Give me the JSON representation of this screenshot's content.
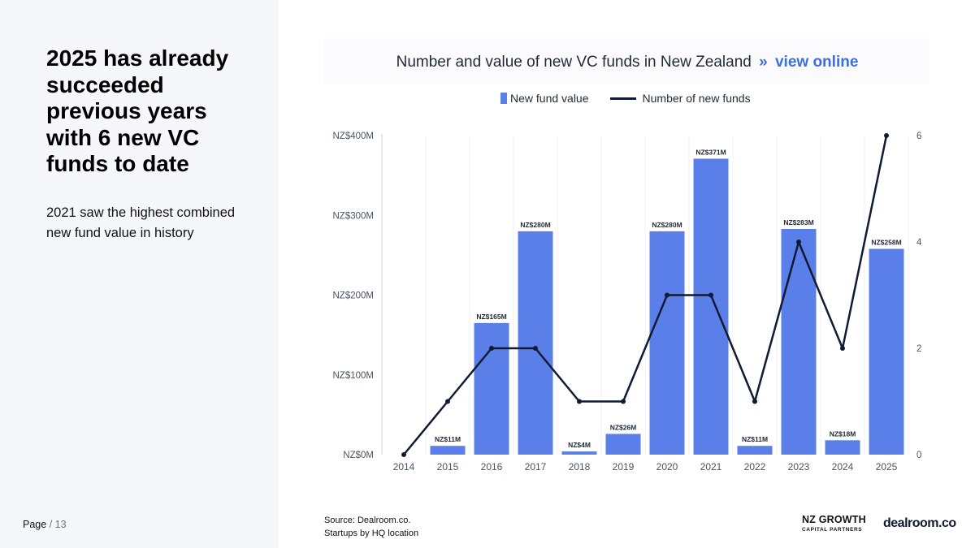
{
  "slide": {
    "headline": "2025 has already succeeded previous years with 6 new VC funds to date",
    "subtext": "2021 saw the highest combined new fund value in history",
    "page_label": "Page",
    "page_total": "/ 13"
  },
  "chart_header": {
    "title": "Number and value of new VC funds in New Zealand",
    "link_chevron": "»",
    "link_text": "view online"
  },
  "legend": {
    "bar_label": "New fund value",
    "line_label": "Number of new funds"
  },
  "source": {
    "line1": "Source:  Dealroom.co.",
    "line2": "Startups by HQ location"
  },
  "brands": {
    "nzgcp_main": "NZ GROWTH",
    "nzgcp_sub": "CAPITAL PARTNERS",
    "dealroom": "dealroom.co"
  },
  "colors": {
    "bar": "#5b7fe8",
    "line": "#0f1a33",
    "axis_text": "#4b5563",
    "data_label": "#1f2937"
  },
  "chart_data": {
    "type": "bar",
    "categories": [
      "2014",
      "2015",
      "2016",
      "2017",
      "2018",
      "2019",
      "2020",
      "2021",
      "2022",
      "2023",
      "2024",
      "2025"
    ],
    "series": [
      {
        "name": "New fund value",
        "type": "bar",
        "axis": "left",
        "values": [
          0,
          11,
          165,
          280,
          4,
          26,
          280,
          371,
          11,
          283,
          18,
          258
        ],
        "labels": [
          "",
          "NZ$11M",
          "NZ$165M",
          "NZ$280M",
          "NZ$4M",
          "NZ$26M",
          "NZ$280M",
          "NZ$371M",
          "NZ$11M",
          "NZ$283M",
          "NZ$18M",
          "NZ$258M"
        ]
      },
      {
        "name": "Number of new funds",
        "type": "line",
        "axis": "right",
        "values": [
          0,
          1,
          2,
          2,
          1,
          1,
          3,
          3,
          1,
          4,
          2,
          6
        ]
      }
    ],
    "y_left": {
      "ylim": [
        0,
        400
      ],
      "ticks": [
        0,
        100,
        200,
        300,
        400
      ],
      "tick_labels": [
        "NZ$0M",
        "NZ$100M",
        "NZ$200M",
        "NZ$300M",
        "NZ$400M"
      ]
    },
    "y_right": {
      "ylim": [
        0,
        6
      ],
      "ticks": [
        0,
        2,
        4,
        6
      ],
      "tick_labels": [
        "0",
        "2",
        "4",
        "6"
      ]
    },
    "grid": true,
    "legend_position": "top"
  }
}
